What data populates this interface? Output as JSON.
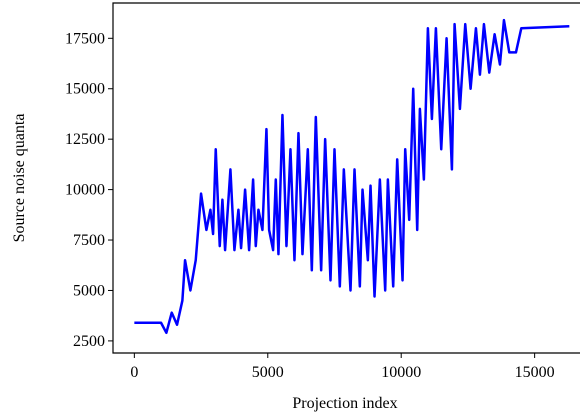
{
  "chart_data": {
    "type": "line",
    "xlabel": "Projection index",
    "ylabel": "Source noise quanta",
    "xlim": [
      -800,
      16700
    ],
    "ylim": [
      1900,
      19250
    ],
    "xticks": [
      0,
      5000,
      10000,
      15000
    ],
    "yticks": [
      2500,
      5000,
      7500,
      10000,
      12500,
      15000,
      17500
    ],
    "x": [
      0,
      1000,
      1200,
      1400,
      1600,
      1800,
      1900,
      2100,
      2300,
      2500,
      2700,
      2850,
      2950,
      3050,
      3200,
      3300,
      3400,
      3600,
      3750,
      3900,
      4000,
      4150,
      4300,
      4450,
      4550,
      4650,
      4800,
      4950,
      5050,
      5200,
      5300,
      5400,
      5550,
      5700,
      5850,
      6000,
      6150,
      6300,
      6500,
      6650,
      6800,
      7000,
      7150,
      7350,
      7500,
      7700,
      7850,
      8100,
      8250,
      8450,
      8550,
      8750,
      8850,
      9000,
      9200,
      9400,
      9500,
      9700,
      9850,
      10050,
      10150,
      10300,
      10450,
      10600,
      10700,
      10850,
      11000,
      11150,
      11300,
      11500,
      11700,
      11900,
      12000,
      12200,
      12400,
      12600,
      12800,
      12950,
      13100,
      13300,
      13500,
      13700,
      13850,
      14050,
      14300,
      14500,
      16300
    ],
    "series": [
      {
        "name": "Source noise quanta",
        "color": "#0000ff",
        "values": [
          3400,
          3400,
          2900,
          3900,
          3300,
          4500,
          6500,
          5000,
          6500,
          9800,
          8000,
          9000,
          7800,
          12000,
          7200,
          9500,
          7000,
          11000,
          7000,
          9000,
          7100,
          10000,
          7000,
          10500,
          7200,
          9000,
          8000,
          13000,
          8000,
          7000,
          10500,
          6800,
          13700,
          7200,
          12000,
          6500,
          12800,
          6800,
          12000,
          6000,
          13600,
          6000,
          12500,
          5500,
          12000,
          5200,
          11000,
          5000,
          11000,
          5200,
          10000,
          6500,
          10200,
          4700,
          10500,
          5000,
          10500,
          5200,
          11500,
          5500,
          12000,
          8500,
          15000,
          8000,
          14000,
          10500,
          18000,
          13500,
          18000,
          12000,
          17500,
          11000,
          18200,
          14000,
          18200,
          15000,
          18000,
          15700,
          18200,
          15800,
          17700,
          16200,
          18400,
          16800,
          16800,
          18000,
          18100
        ]
      }
    ]
  }
}
